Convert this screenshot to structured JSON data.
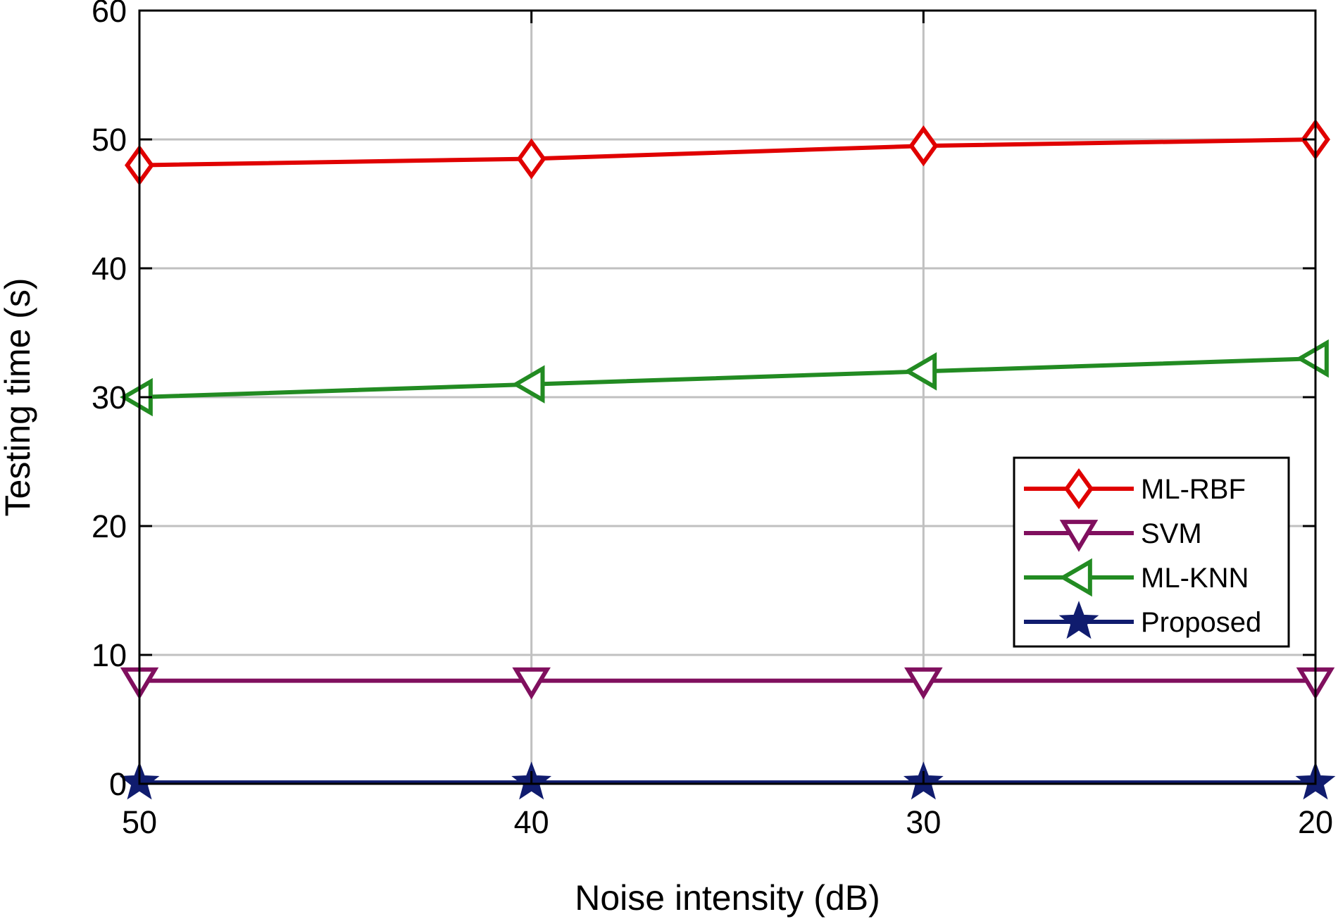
{
  "chart_data": {
    "type": "line",
    "title": "",
    "xlabel": "Noise intensity (dB)",
    "ylabel": "Testing time (s)",
    "x": [
      50,
      40,
      30,
      20
    ],
    "xticks": [
      "50",
      "40",
      "30",
      "20"
    ],
    "yticks": [
      "0",
      "10",
      "20",
      "30",
      "40",
      "50",
      "60"
    ],
    "ylim": [
      0,
      60
    ],
    "grid": true,
    "legend_position": "lower-right",
    "series": [
      {
        "name": "ML-RBF",
        "marker": "diamond",
        "color": "#e00000",
        "values": [
          48,
          48.5,
          49.5,
          50
        ]
      },
      {
        "name": "SVM",
        "marker": "triangle-down",
        "color": "#800f5e",
        "values": [
          8,
          8,
          8,
          8
        ]
      },
      {
        "name": "ML-KNN",
        "marker": "triangle-left",
        "color": "#228b22",
        "values": [
          30,
          31,
          32,
          33
        ]
      },
      {
        "name": "Proposed",
        "marker": "star",
        "color": "#101c6e",
        "values": [
          0.1,
          0.1,
          0.1,
          0.1
        ]
      }
    ]
  }
}
